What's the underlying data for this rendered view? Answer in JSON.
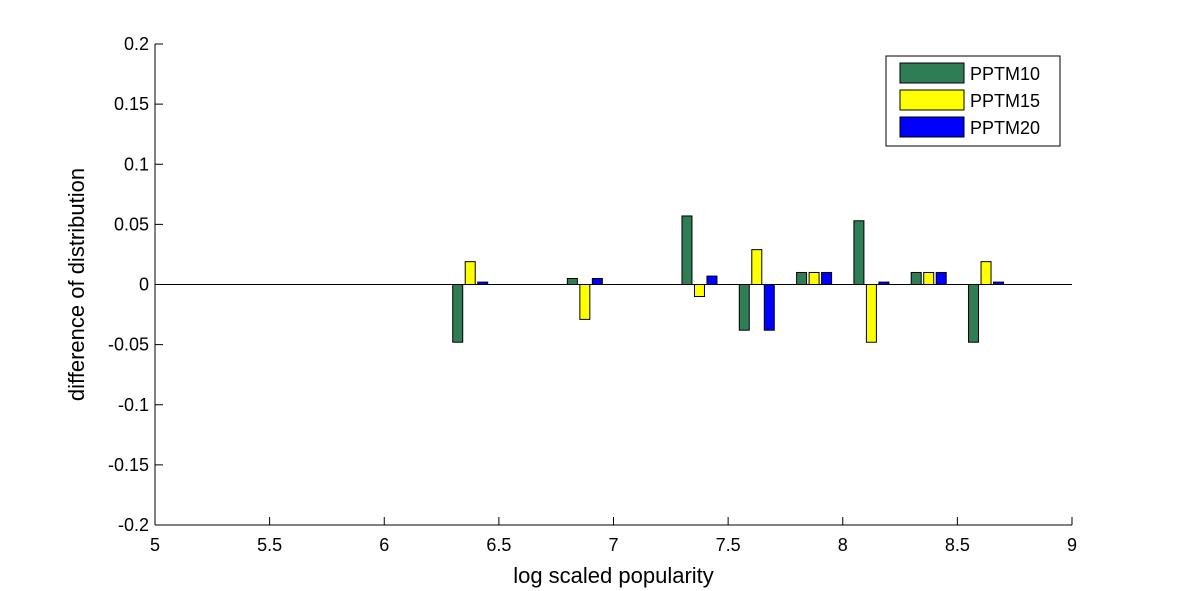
{
  "chart_data": {
    "type": "bar",
    "title": "",
    "xlabel": "log scaled popularity",
    "ylabel": "difference of distribution",
    "xlim": [
      5,
      9
    ],
    "ylim": [
      -0.2,
      0.2
    ],
    "xticks": [
      "5",
      "5.5",
      "6",
      "6.5",
      "7",
      "7.5",
      "8",
      "8.5",
      "9"
    ],
    "yticks": [
      "0.2",
      "0.15",
      "0.1",
      "0.05",
      "0",
      "-0.05",
      "-0.1",
      "-0.15",
      "-0.2"
    ],
    "legend_position": "top-right",
    "grid": false,
    "x": [
      6.375,
      6.875,
      7.375,
      7.625,
      7.875,
      8.125,
      8.375,
      8.625
    ],
    "series": [
      {
        "name": "PPTM10",
        "color": "#2e7d55",
        "values": [
          -0.048,
          0.005,
          0.057,
          -0.038,
          0.01,
          0.053,
          0.01,
          -0.048
        ]
      },
      {
        "name": "PPTM15",
        "color": "#ffff00",
        "values": [
          0.019,
          -0.029,
          -0.01,
          0.029,
          0.01,
          -0.048,
          0.01,
          0.019
        ]
      },
      {
        "name": "PPTM20",
        "color": "#0000ff",
        "values": [
          0.002,
          0.005,
          0.007,
          -0.038,
          0.01,
          0.002,
          0.01,
          0.002
        ]
      }
    ]
  }
}
